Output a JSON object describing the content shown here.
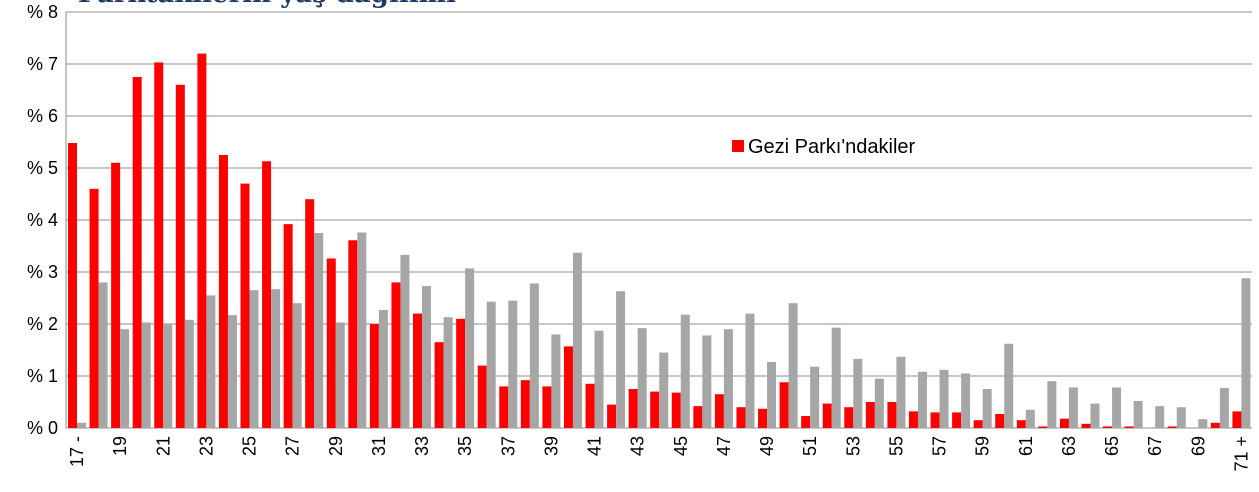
{
  "chart_data": {
    "type": "bar",
    "title": "Parktakilerin yaş dağılımı",
    "categories": [
      "17 -",
      null,
      "19",
      null,
      "21",
      null,
      "23",
      null,
      "25",
      null,
      "27",
      null,
      "29",
      null,
      "31",
      null,
      "33",
      null,
      "35",
      null,
      "37",
      null,
      "39",
      null,
      "41",
      null,
      "43",
      null,
      "45",
      null,
      "47",
      null,
      "49",
      null,
      "51",
      null,
      "53",
      null,
      "55",
      null,
      "57",
      null,
      "59",
      null,
      "61",
      null,
      "63",
      null,
      "65",
      null,
      "67",
      null,
      "69",
      null,
      "71 +"
    ],
    "series": [
      {
        "name": "Gezi Parkı'ndakiler",
        "color": "#ff0000",
        "values": [
          5.48,
          4.6,
          5.1,
          6.75,
          7.03,
          6.6,
          7.2,
          5.25,
          4.7,
          5.13,
          3.92,
          4.4,
          3.26,
          3.61,
          2.0,
          2.8,
          2.2,
          1.65,
          2.1,
          1.2,
          0.8,
          0.92,
          0.8,
          1.57,
          0.85,
          0.45,
          0.75,
          0.7,
          0.68,
          0.42,
          0.65,
          0.4,
          0.37,
          0.88,
          0.23,
          0.47,
          0.4,
          0.5,
          0.5,
          0.32,
          0.3,
          0.3,
          0.15,
          0.27,
          0.15,
          0.03,
          0.18,
          0.08,
          0.03,
          0.03,
          0.0,
          0.03,
          0.0,
          0.1,
          0.32
        ]
      },
      {
        "color": "#a6a6a6",
        "values": [
          0.1,
          2.8,
          1.9,
          2.03,
          2.0,
          2.08,
          2.55,
          2.17,
          2.65,
          2.67,
          2.4,
          3.75,
          2.03,
          3.76,
          2.27,
          3.33,
          2.73,
          2.13,
          3.07,
          2.43,
          2.45,
          2.78,
          1.8,
          3.37,
          1.87,
          2.63,
          1.92,
          1.45,
          2.18,
          1.78,
          1.9,
          2.2,
          1.27,
          2.4,
          1.18,
          1.93,
          1.33,
          0.95,
          1.37,
          1.08,
          1.12,
          1.05,
          0.75,
          1.62,
          0.35,
          0.9,
          0.78,
          0.47,
          0.78,
          0.52,
          0.42,
          0.4,
          0.17,
          0.77,
          2.88
        ]
      }
    ],
    "ylim": [
      0,
      8
    ],
    "yticks": [
      {
        "value": 0,
        "label": "% 0"
      },
      {
        "value": 1,
        "label": "% 1"
      },
      {
        "value": 2,
        "label": "% 2"
      },
      {
        "value": 3,
        "label": "% 3"
      },
      {
        "value": 4,
        "label": "% 4"
      },
      {
        "value": 5,
        "label": "% 5"
      },
      {
        "value": 6,
        "label": "% 6"
      },
      {
        "value": 7,
        "label": "% 7"
      },
      {
        "value": 8,
        "label": "% 8"
      }
    ],
    "grid": true
  }
}
